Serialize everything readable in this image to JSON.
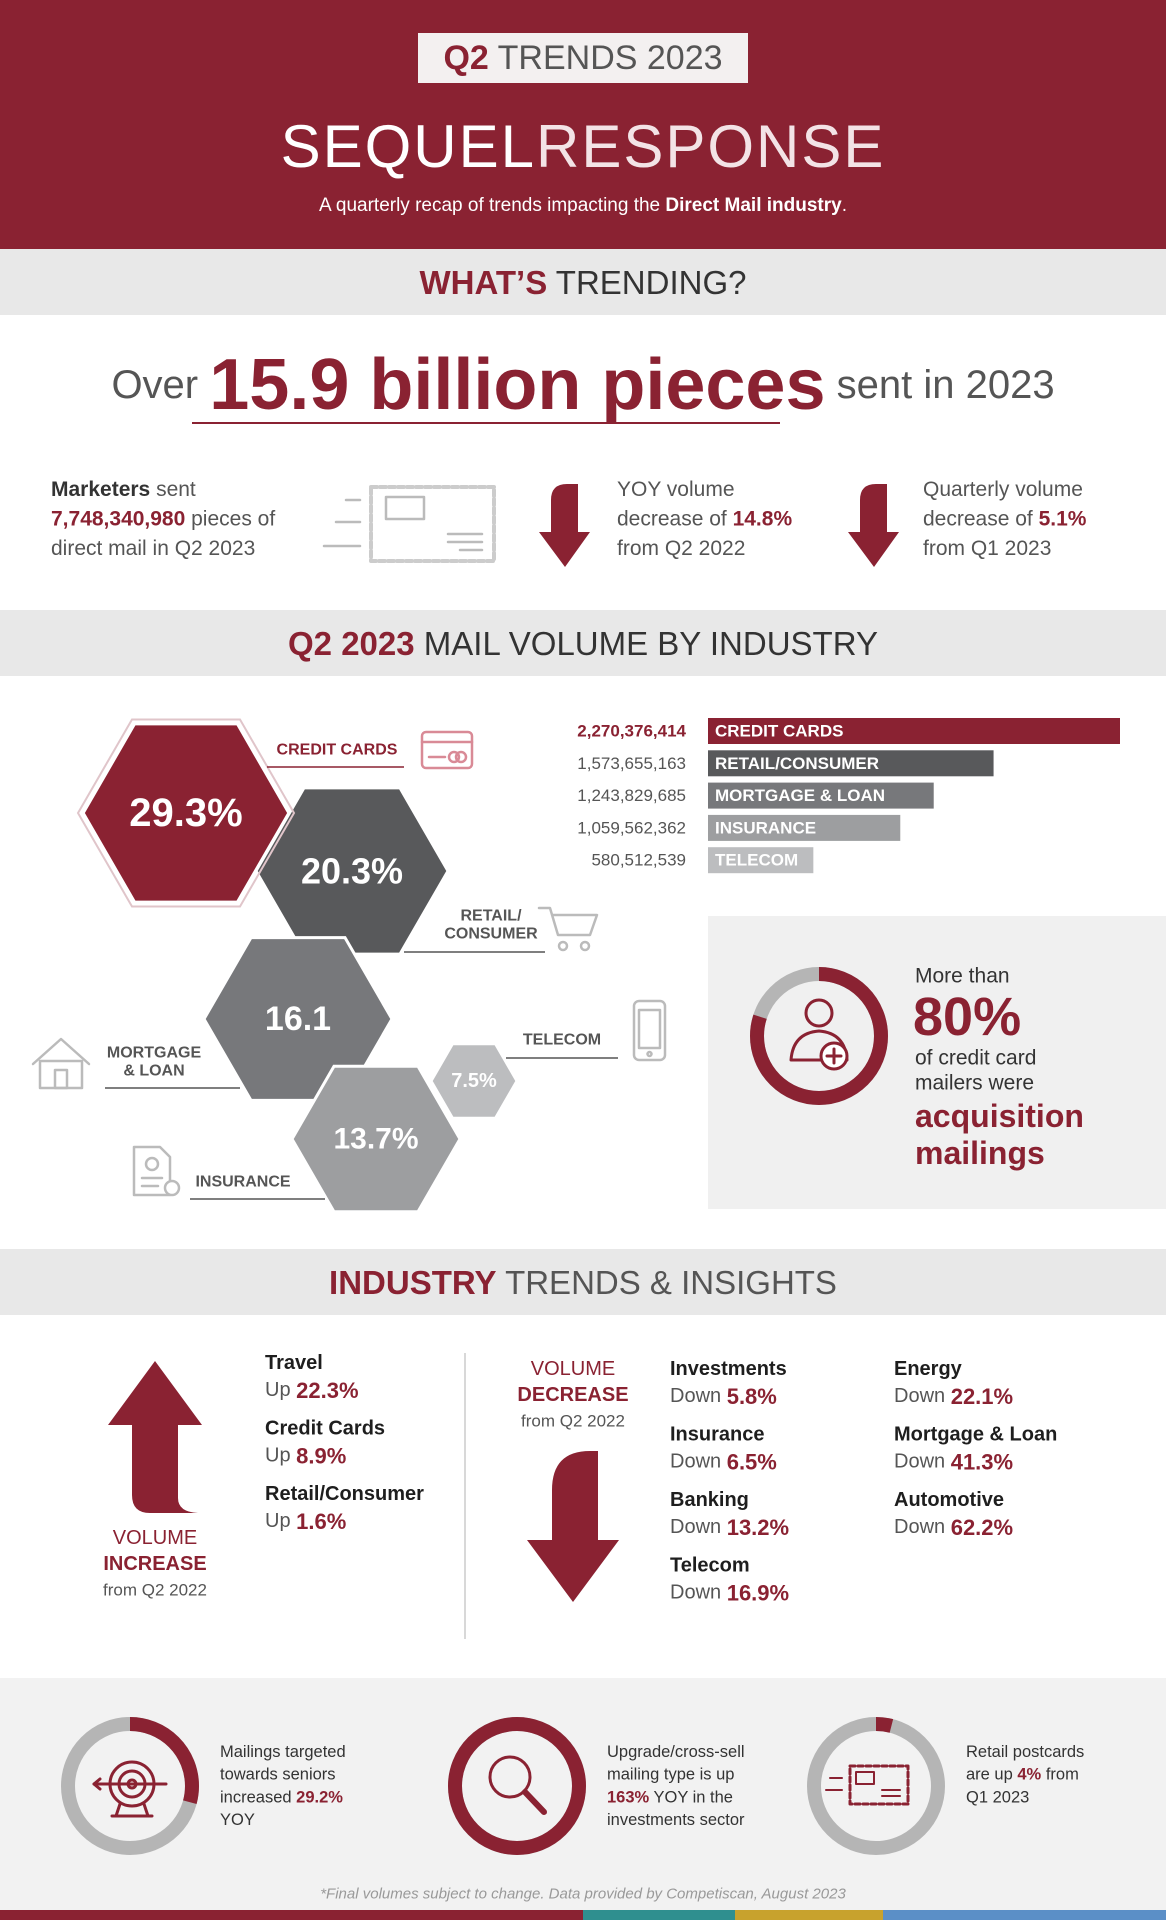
{
  "header": {
    "badge": [
      "Q2",
      " TRENDS 2023"
    ],
    "logo": [
      "SEQUEL",
      "RESPONSE"
    ],
    "subtitle": [
      "A quarterly recap of trends impacting the ",
      "Direct Mail industry",
      "."
    ]
  },
  "trending": {
    "heading": [
      "WHAT’S",
      " TRENDING?"
    ],
    "headline": [
      "Over ",
      "15.9 billion pieces",
      " sent in 2023"
    ],
    "stats": [
      [
        [
          "Marketers",
          " sent"
        ],
        [
          "7,748,340,980",
          " pieces of"
        ],
        [
          "direct mail in Q2 2023"
        ]
      ],
      [
        [
          "YOY volume"
        ],
        [
          "decrease of ",
          "14.8%"
        ],
        [
          "from Q2 2022"
        ]
      ],
      [
        [
          "Quarterly volume"
        ],
        [
          "decrease of ",
          "5.1%"
        ],
        [
          "from Q1 2023"
        ]
      ]
    ]
  },
  "industry": {
    "heading": [
      "Q2 2023",
      " MAIL VOLUME BY INDUSTRY"
    ],
    "hexagons": [
      {
        "share": "29.3%",
        "label": [
          "CREDIT CARDS"
        ]
      },
      {
        "share": "20.3%",
        "label": [
          "RETAIL/",
          "CONSUMER"
        ]
      },
      {
        "share": "16.1",
        "label": [
          "MORTGAGE",
          "& LOAN"
        ]
      },
      {
        "share": "13.7%",
        "label": [
          "INSURANCE"
        ]
      },
      {
        "share": "7.5%",
        "label": [
          "TELECOM"
        ]
      }
    ],
    "volume_chart": {
      "type": "bar",
      "categories": [
        "CREDIT CARDS",
        "RETAIL/CONSUMER",
        "MORTGAGE & LOAN",
        "INSURANCE",
        "TELECOM"
      ],
      "values": [
        2270376414,
        1573655163,
        1243829685,
        1059562362,
        580512539
      ],
      "value_labels": [
        "2,270,376,414",
        "1,573,655,163",
        "1,243,829,685",
        "1,059,562,362",
        "580,512,539"
      ],
      "colors": [
        "#8a2232",
        "#58595b",
        "#77787b",
        "#9d9ea0",
        "#bcbdbf"
      ]
    },
    "callout": {
      "lead": "More than",
      "figure": {
        "value": 80,
        "label": "80%"
      },
      "lines": [
        "of credit card",
        "mailers were"
      ],
      "emphasis": [
        "acquisition",
        "mailings"
      ]
    }
  },
  "insights": {
    "heading": [
      "INDUSTRY",
      " TRENDS & INSIGHTS"
    ],
    "increase": {
      "title": [
        "VOLUME",
        "INCREASE",
        "from Q2 2022"
      ],
      "items": [
        {
          "name": "Travel",
          "change": [
            "Up ",
            "22.3%"
          ]
        },
        {
          "name": "Credit Cards",
          "change": [
            "Up ",
            "8.9%"
          ]
        },
        {
          "name": "Retail/Consumer",
          "change": [
            "Up ",
            "1.6%"
          ]
        }
      ]
    },
    "decrease": {
      "title": [
        "VOLUME",
        "DECREASE",
        "from Q2 2022"
      ],
      "items": [
        {
          "name": "Investments",
          "change": [
            "Down ",
            "5.8%"
          ]
        },
        {
          "name": "Insurance",
          "change": [
            "Down ",
            "6.5%"
          ]
        },
        {
          "name": "Banking",
          "change": [
            "Down ",
            "13.2%"
          ]
        },
        {
          "name": "Telecom",
          "change": [
            "Down ",
            "16.9%"
          ]
        },
        {
          "name": "Energy",
          "change": [
            "Down ",
            "22.1%"
          ]
        },
        {
          "name": "Mortgage & Loan",
          "change": [
            "Down ",
            "41.3%"
          ]
        },
        {
          "name": "Automotive",
          "change": [
            "Down ",
            "62.2%"
          ]
        }
      ]
    }
  },
  "highlights": [
    {
      "lines": [
        [
          "Mailings targeted"
        ],
        [
          "towards seniors"
        ],
        [
          "increased "
        ],
        [
          "YOY"
        ]
      ],
      "figure": {
        "value": 29.2,
        "label": "29.2%"
      }
    },
    {
      "lines": [
        [
          "Upgrade/cross-sell"
        ],
        [
          "mailing type is up"
        ],
        [
          " YOY in the"
        ],
        [
          "investments sector"
        ]
      ],
      "figure": {
        "value": 163,
        "label": "163%"
      }
    },
    {
      "lines": [
        [
          "Retail postcards"
        ],
        [
          "are up ",
          " from"
        ],
        [
          "Q1 2023"
        ]
      ],
      "figure": {
        "value": 4,
        "label": "4%"
      }
    }
  ],
  "footnote": "*Final volumes subject to change. Data provided by Competiscan, August 2023"
}
